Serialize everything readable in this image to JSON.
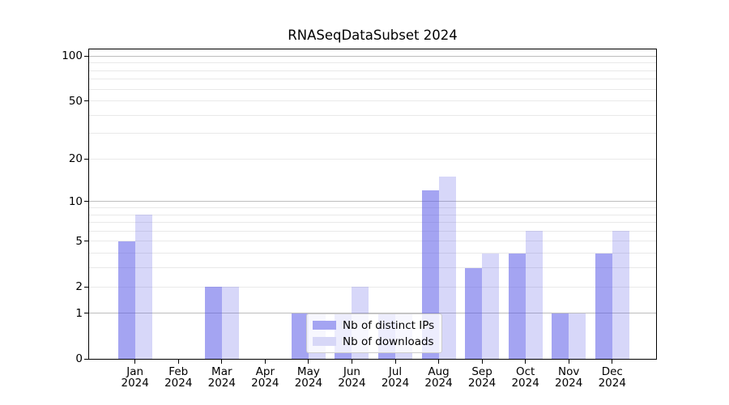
{
  "chart_data": {
    "type": "bar",
    "title": "RNASeqDataSubset 2024",
    "categories": [
      "Jan",
      "Feb",
      "Mar",
      "Apr",
      "May",
      "Jun",
      "Jul",
      "Aug",
      "Sep",
      "Oct",
      "Nov",
      "Dec"
    ],
    "year_label": "2024",
    "series": [
      {
        "name": "Nb of distinct IPs",
        "color": "#a4a4f2",
        "fill": "rgba(90,90,232,0.55)",
        "values": [
          5,
          0,
          2,
          0,
          1,
          1,
          1,
          12,
          3,
          4,
          1,
          4
        ]
      },
      {
        "name": "Nb of downloads",
        "color": "#d7d7f7",
        "fill": "rgba(90,90,232,0.245)",
        "values": [
          8,
          0,
          2,
          0,
          1,
          2,
          1,
          15,
          4,
          6,
          1,
          6
        ]
      }
    ],
    "y_axis": {
      "scale": "log1p",
      "ylim": [
        0,
        111
      ],
      "tick_values": [
        100,
        50,
        20,
        10,
        5,
        2,
        1,
        0
      ],
      "tick_labels": [
        "100",
        "50",
        "20",
        "10",
        "5",
        "2",
        "1",
        "0"
      ],
      "strong_gridlines": [
        1,
        10,
        100
      ],
      "light_gridlines": [
        2,
        3,
        4,
        5,
        6,
        7,
        8,
        9,
        20,
        30,
        40,
        50,
        60,
        70,
        80,
        90
      ]
    },
    "legend": {
      "position": "lower-center"
    },
    "colors": {
      "grid_major": "#bdbdbd",
      "grid_minor": "#e9e9e9",
      "spine": "#000000",
      "background": "#ffffff",
      "text": "#000000"
    }
  }
}
